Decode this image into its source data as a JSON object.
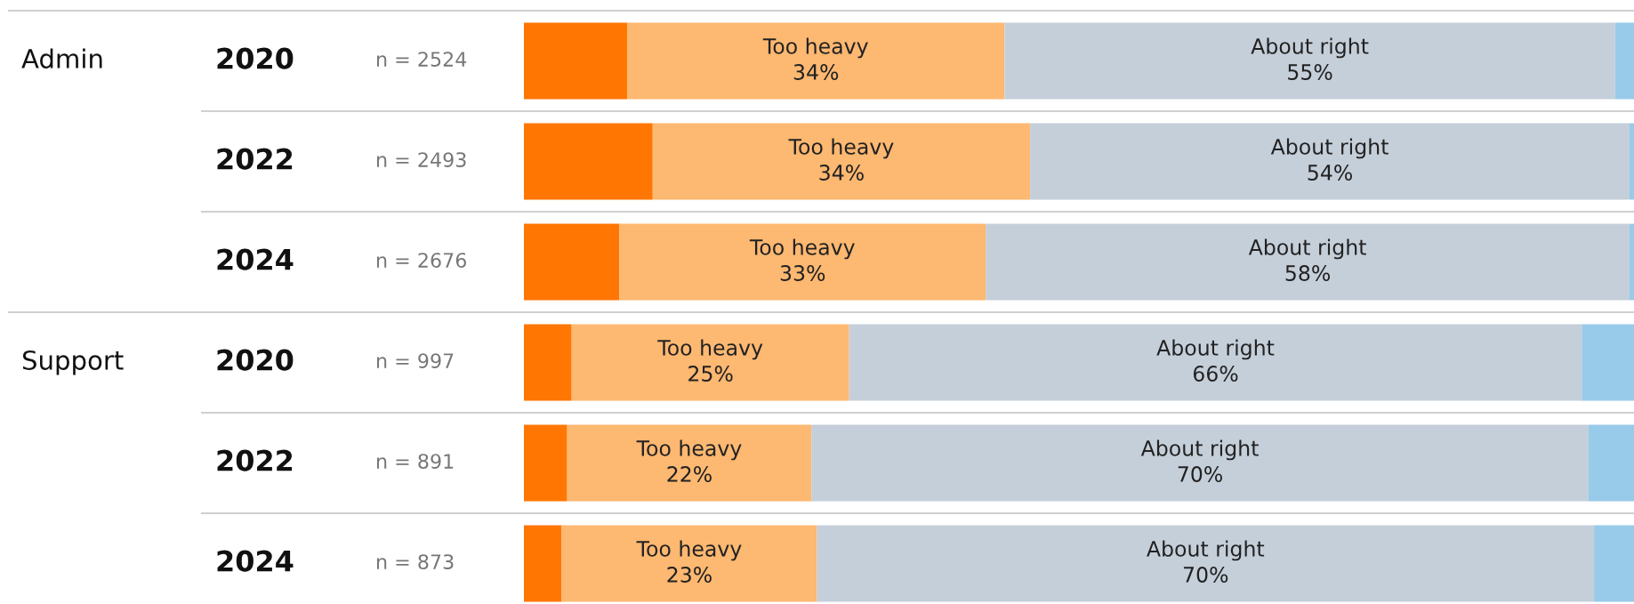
{
  "chart_data": {
    "type": "bar",
    "orientation": "horizontal",
    "stacked": true,
    "categories": [
      "2020",
      "2022",
      "2024",
      "2020",
      "2022",
      "2024"
    ],
    "series": [
      {
        "color": "#ff7602",
        "values": [
          9.3,
          11.6,
          8.6,
          4.3,
          3.9,
          3.4
        ]
      },
      {
        "name": "Too heavy",
        "color": "#fdb871",
        "values": [
          34,
          34,
          33,
          25,
          22,
          23
        ],
        "value_labels": [
          "34%",
          "34%",
          "33%",
          "25%",
          "22%",
          "23%"
        ]
      },
      {
        "name": "About right",
        "color": "#c5cfda",
        "values": [
          55,
          54,
          58,
          66,
          70,
          70
        ],
        "value_labels": [
          "55%",
          "54%",
          "58%",
          "66%",
          "70%",
          "70%"
        ]
      },
      {
        "color": "#98caea",
        "values": [
          1.7,
          0.4,
          0.4,
          4.7,
          4.1,
          3.6
        ]
      }
    ],
    "xlim": [
      0,
      100
    ],
    "tick_labels": false,
    "legend": false,
    "annotations": [
      "n = 2524",
      "n = 2493",
      "n = 2676",
      "n = 997",
      "n = 891",
      "n = 873",
      "Admin",
      "Support"
    ]
  }
}
